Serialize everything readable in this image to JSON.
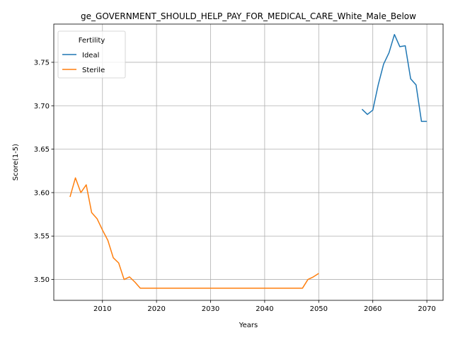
{
  "chart_data": {
    "type": "line",
    "title": "ge_GOVERNMENT_SHOULD_HELP_PAY_FOR_MEDICAL_CARE_White_Male_Below",
    "xlabel": "Years",
    "ylabel": "Score(1-5)",
    "xlim": [
      2001,
      2073
    ],
    "ylim": [
      3.476,
      3.794
    ],
    "xticks": [
      2010,
      2020,
      2030,
      2040,
      2050,
      2060,
      2070
    ],
    "yticks": [
      3.5,
      3.55,
      3.6,
      3.65,
      3.7,
      3.75
    ],
    "xtick_labels": [
      "2010",
      "2020",
      "2030",
      "2040",
      "2050",
      "2060",
      "2070"
    ],
    "ytick_labels": [
      "3.50",
      "3.55",
      "3.60",
      "3.65",
      "3.70",
      "3.75"
    ],
    "grid": true,
    "legend": {
      "title": "Fertility",
      "placement": "top-left"
    },
    "series": [
      {
        "name": "Ideal",
        "color": "#1f77b4",
        "x": [
          2058,
          2059,
          2060,
          2061,
          2062,
          2063,
          2064,
          2065,
          2066,
          2067,
          2068,
          2069,
          2070
        ],
        "y": [
          3.696,
          3.69,
          3.695,
          3.724,
          3.748,
          3.761,
          3.782,
          3.768,
          3.769,
          3.731,
          3.724,
          3.682,
          3.682
        ]
      },
      {
        "name": "Sterile",
        "color": "#ff7f0e",
        "x": [
          2004,
          2005,
          2006,
          2007,
          2008,
          2009,
          2010,
          2011,
          2012,
          2013,
          2014,
          2015,
          2016,
          2017,
          2018,
          2019,
          2020,
          2025,
          2030,
          2035,
          2040,
          2045,
          2047,
          2048,
          2049,
          2050
        ],
        "y": [
          3.595,
          3.617,
          3.6,
          3.609,
          3.577,
          3.57,
          3.557,
          3.545,
          3.525,
          3.519,
          3.5,
          3.503,
          3.497,
          3.49,
          3.49,
          3.49,
          3.49,
          3.49,
          3.49,
          3.49,
          3.49,
          3.49,
          3.49,
          3.5,
          3.503,
          3.507
        ]
      }
    ]
  }
}
